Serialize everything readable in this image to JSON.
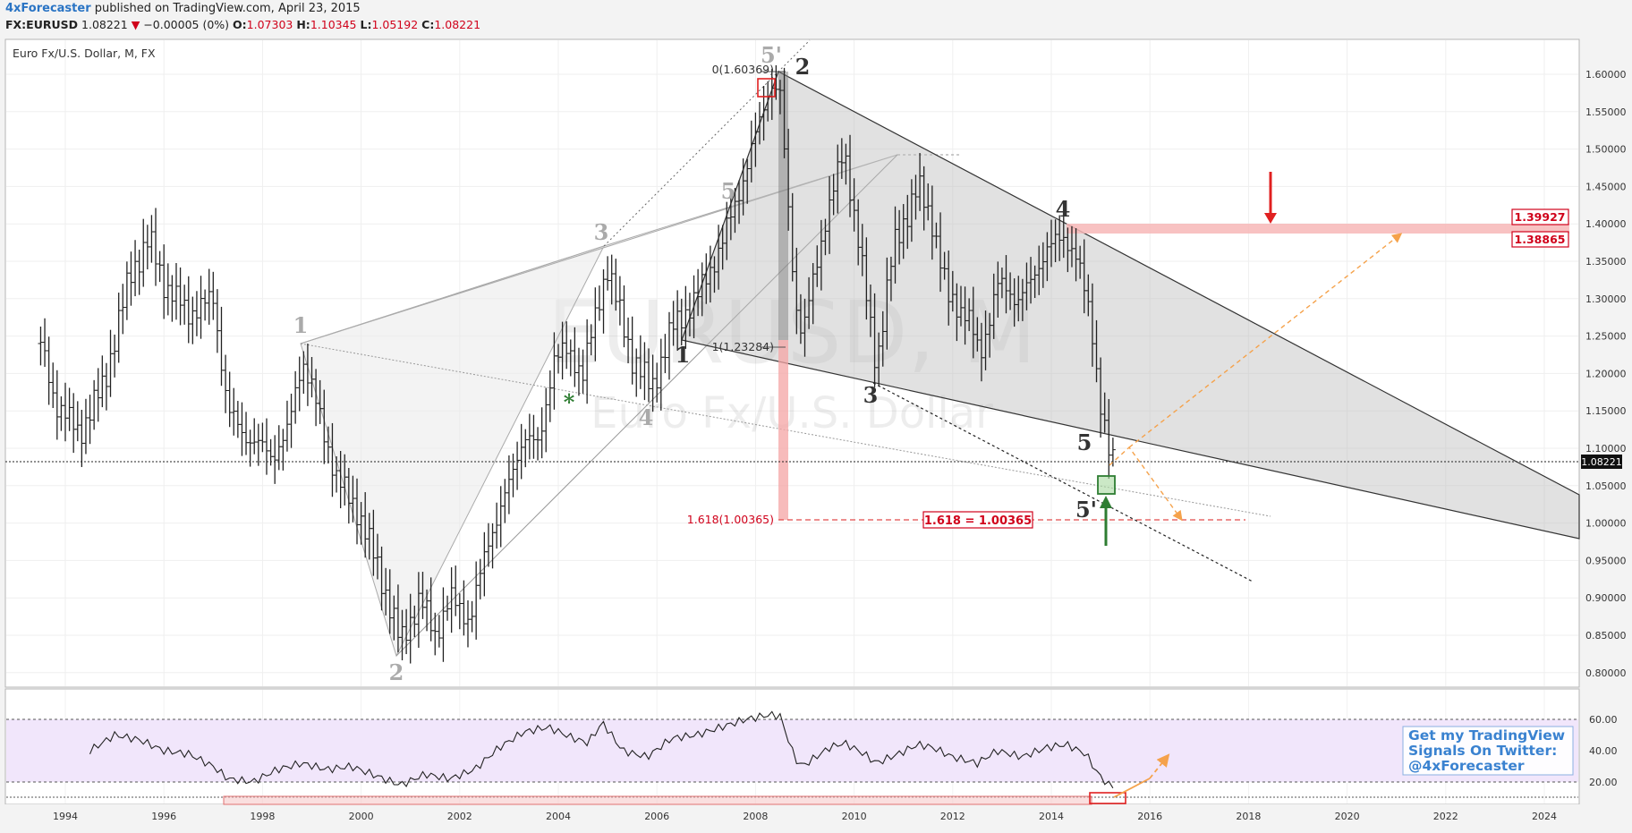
{
  "header": {
    "author": "4xForecaster",
    "published": " published on TradingView.com, April 23, 2015",
    "symbol": "FX:EURUSD",
    "last": "1.08221",
    "change": "−0.00005 (0%)",
    "o_label": "O:",
    "o": "1.07303",
    "h_label": "H:",
    "h": "1.10345",
    "l_label": "L:",
    "l": "1.05192",
    "c_label": "C:",
    "c": "1.08221"
  },
  "chart_data": {
    "type": "ohlc",
    "title": "Euro Fx/U.S. Dollar, M, FX",
    "watermark_symbol": "EURUSD, M",
    "watermark_name": "Euro Fx/U.S. Dollar",
    "ylim": [
      0.775,
      1.635
    ],
    "y_ticks": [
      "0.80000",
      "0.85000",
      "0.90000",
      "0.95000",
      "1.00000",
      "1.05000",
      "1.10000",
      "1.15000",
      "1.20000",
      "1.25000",
      "1.30000",
      "1.35000",
      "1.40000",
      "1.45000",
      "1.50000",
      "1.55000",
      "1.60000"
    ],
    "x_ticks": [
      "1994",
      "1996",
      "1998",
      "2000",
      "2002",
      "2004",
      "2006",
      "2008",
      "2010",
      "2012",
      "2014",
      "2016",
      "2018",
      "2020",
      "2022",
      "2024"
    ],
    "last_price_label": "1.08221",
    "series_anchors": [
      [
        1993.5,
        1.24
      ],
      [
        1993.8,
        1.16
      ],
      [
        1994.3,
        1.12
      ],
      [
        1994.8,
        1.19
      ],
      [
        1995.3,
        1.33
      ],
      [
        1995.7,
        1.38
      ],
      [
        1996.0,
        1.32
      ],
      [
        1996.5,
        1.28
      ],
      [
        1997.0,
        1.3
      ],
      [
        1997.3,
        1.15
      ],
      [
        1997.6,
        1.12
      ],
      [
        1998.2,
        1.09
      ],
      [
        1998.5,
        1.12
      ],
      [
        1998.8,
        1.22
      ],
      [
        1999.0,
        1.18
      ],
      [
        1999.5,
        1.06
      ],
      [
        1999.9,
        1.02
      ],
      [
        2000.3,
        0.95
      ],
      [
        2000.8,
        0.84
      ],
      [
        2001.2,
        0.9
      ],
      [
        2001.5,
        0.85
      ],
      [
        2001.8,
        0.9
      ],
      [
        2002.2,
        0.87
      ],
      [
        2002.6,
        0.98
      ],
      [
        2003.0,
        1.05
      ],
      [
        2003.3,
        1.12
      ],
      [
        2003.6,
        1.1
      ],
      [
        2003.9,
        1.22
      ],
      [
        2004.2,
        1.23
      ],
      [
        2004.5,
        1.2
      ],
      [
        2004.9,
        1.32
      ],
      [
        2005.0,
        1.34
      ],
      [
        2005.5,
        1.22
      ],
      [
        2005.9,
        1.18
      ],
      [
        2006.3,
        1.26
      ],
      [
        2006.8,
        1.3
      ],
      [
        2007.3,
        1.37
      ],
      [
        2007.8,
        1.47
      ],
      [
        2008.3,
        1.59
      ],
      [
        2008.5,
        1.57
      ],
      [
        2008.8,
        1.3
      ],
      [
        2008.95,
        1.25
      ],
      [
        2009.4,
        1.4
      ],
      [
        2009.8,
        1.5
      ],
      [
        2010.1,
        1.37
      ],
      [
        2010.45,
        1.21
      ],
      [
        2010.8,
        1.37
      ],
      [
        2011.3,
        1.45
      ],
      [
        2011.6,
        1.4
      ],
      [
        2011.9,
        1.3
      ],
      [
        2012.3,
        1.28
      ],
      [
        2012.55,
        1.22
      ],
      [
        2012.9,
        1.32
      ],
      [
        2013.3,
        1.3
      ],
      [
        2013.6,
        1.32
      ],
      [
        2013.9,
        1.37
      ],
      [
        2014.3,
        1.38
      ],
      [
        2014.5,
        1.36
      ],
      [
        2014.8,
        1.27
      ],
      [
        2015.0,
        1.16
      ],
      [
        2015.2,
        1.08
      ],
      [
        2015.3,
        1.082
      ]
    ],
    "rsi": {
      "ylim": [
        12,
        68
      ],
      "y_ticks": [
        "20.00",
        "40.00",
        "60.00"
      ],
      "upper_band": 55,
      "lower_band": 23,
      "floor": 16,
      "series_anchors": [
        [
          1994.5,
          40
        ],
        [
          1995.0,
          50
        ],
        [
          1995.5,
          47
        ],
        [
          1996.0,
          40
        ],
        [
          1996.5,
          38
        ],
        [
          1997.0,
          30
        ],
        [
          1997.3,
          22
        ],
        [
          1997.8,
          20
        ],
        [
          1998.3,
          28
        ],
        [
          1998.8,
          32
        ],
        [
          1999.3,
          28
        ],
        [
          1999.8,
          30
        ],
        [
          2000.3,
          24
        ],
        [
          2000.8,
          18
        ],
        [
          2001.3,
          25
        ],
        [
          2001.8,
          22
        ],
        [
          2002.3,
          28
        ],
        [
          2002.8,
          42
        ],
        [
          2003.3,
          52
        ],
        [
          2003.8,
          55
        ],
        [
          2004.3,
          48
        ],
        [
          2004.6,
          45
        ],
        [
          2004.9,
          58
        ],
        [
          2005.3,
          40
        ],
        [
          2005.8,
          36
        ],
        [
          2006.3,
          48
        ],
        [
          2006.8,
          50
        ],
        [
          2007.3,
          55
        ],
        [
          2007.8,
          60
        ],
        [
          2008.3,
          63
        ],
        [
          2008.5,
          62
        ],
        [
          2008.8,
          35
        ],
        [
          2008.95,
          30
        ],
        [
          2009.5,
          42
        ],
        [
          2009.8,
          45
        ],
        [
          2010.2,
          38
        ],
        [
          2010.45,
          32
        ],
        [
          2010.9,
          38
        ],
        [
          2011.3,
          44
        ],
        [
          2011.6,
          42
        ],
        [
          2012.0,
          36
        ],
        [
          2012.5,
          32
        ],
        [
          2012.9,
          40
        ],
        [
          2013.4,
          36
        ],
        [
          2013.9,
          42
        ],
        [
          2014.3,
          44
        ],
        [
          2014.7,
          38
        ],
        [
          2014.95,
          25
        ],
        [
          2015.2,
          17
        ],
        [
          2015.3,
          18
        ]
      ]
    },
    "annotations": {
      "wave_grey_1": "1",
      "wave_grey_2": "2",
      "wave_grey_3": "3",
      "wave_grey_4": "4",
      "wave_grey_5": "5",
      "wave_grey_5p": "5'",
      "star": "*",
      "wave_dark_1": "1",
      "wave_dark_2": "2",
      "wave_dark_3": "3",
      "wave_dark_4": "4",
      "wave_dark_5": "5",
      "wave_dark_5p": "5'",
      "fib_0": "0(1.60369)",
      "fib_1": "1(1.23284)",
      "fib_1618": "1.618(1.00365)",
      "fib_box": "1.618 = 1.00365",
      "level_a": "1.39927",
      "level_b": "1.38865"
    },
    "promo": [
      "Get my TradingView",
      "Signals On Twitter:",
      "@4xForecaster"
    ],
    "colors": {
      "down": "#d0021b",
      "up_signal": "#2e7d32",
      "target": "#f5a24b",
      "rsi_band": "#f1e6fb"
    }
  }
}
